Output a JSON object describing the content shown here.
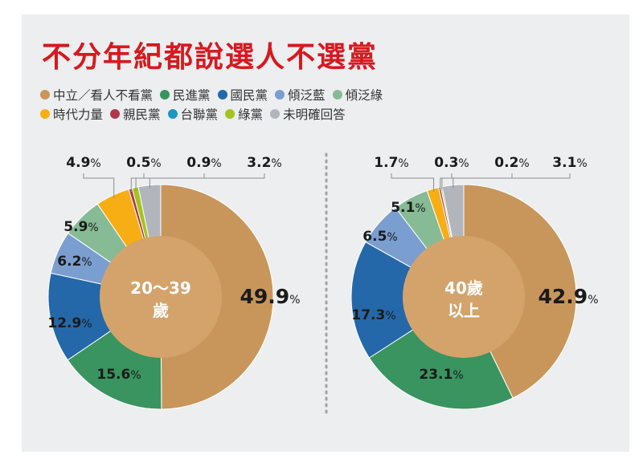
{
  "title": "不分年紀都說選人不選黨",
  "colors": [
    "#c8965a",
    "#3a9460",
    "#2468aa",
    "#7b9ed0",
    "#86bb95",
    "#f6ae14",
    "#b2364a",
    "#1b97c1",
    "#a3c41f",
    "#b3b5bd"
  ],
  "chart_data": {
    "type": "pie",
    "categories": [
      "中立／看人不看黨",
      "民進黨",
      "國民黨",
      "傾泛藍",
      "傾泛綠",
      "時代力量",
      "親民黨",
      "台聯黨",
      "綠黨",
      "未明確回答"
    ],
    "series": [
      {
        "name": "20～39歲",
        "center_line1": "20～39",
        "center_line2": "歲",
        "values": [
          49.9,
          15.6,
          12.9,
          6.2,
          5.9,
          4.9,
          0.5,
          0.0,
          0.9,
          3.2
        ]
      },
      {
        "name": "40歲以上",
        "center_line1": "40歲",
        "center_line2": "以上",
        "values": [
          42.9,
          23.1,
          17.3,
          6.5,
          5.1,
          1.7,
          0.3,
          0.0,
          0.2,
          3.1
        ]
      }
    ],
    "labels": [
      [
        "49.9",
        "15.6",
        "12.9",
        "6.2",
        "5.9",
        "4.9",
        "0.5",
        "",
        "0.9",
        "3.2"
      ],
      [
        "42.9",
        "23.1",
        "17.3",
        "6.5",
        "5.1",
        "1.7",
        "0.3",
        "",
        "0.2",
        "3.1"
      ]
    ],
    "percent_sign": "%"
  }
}
